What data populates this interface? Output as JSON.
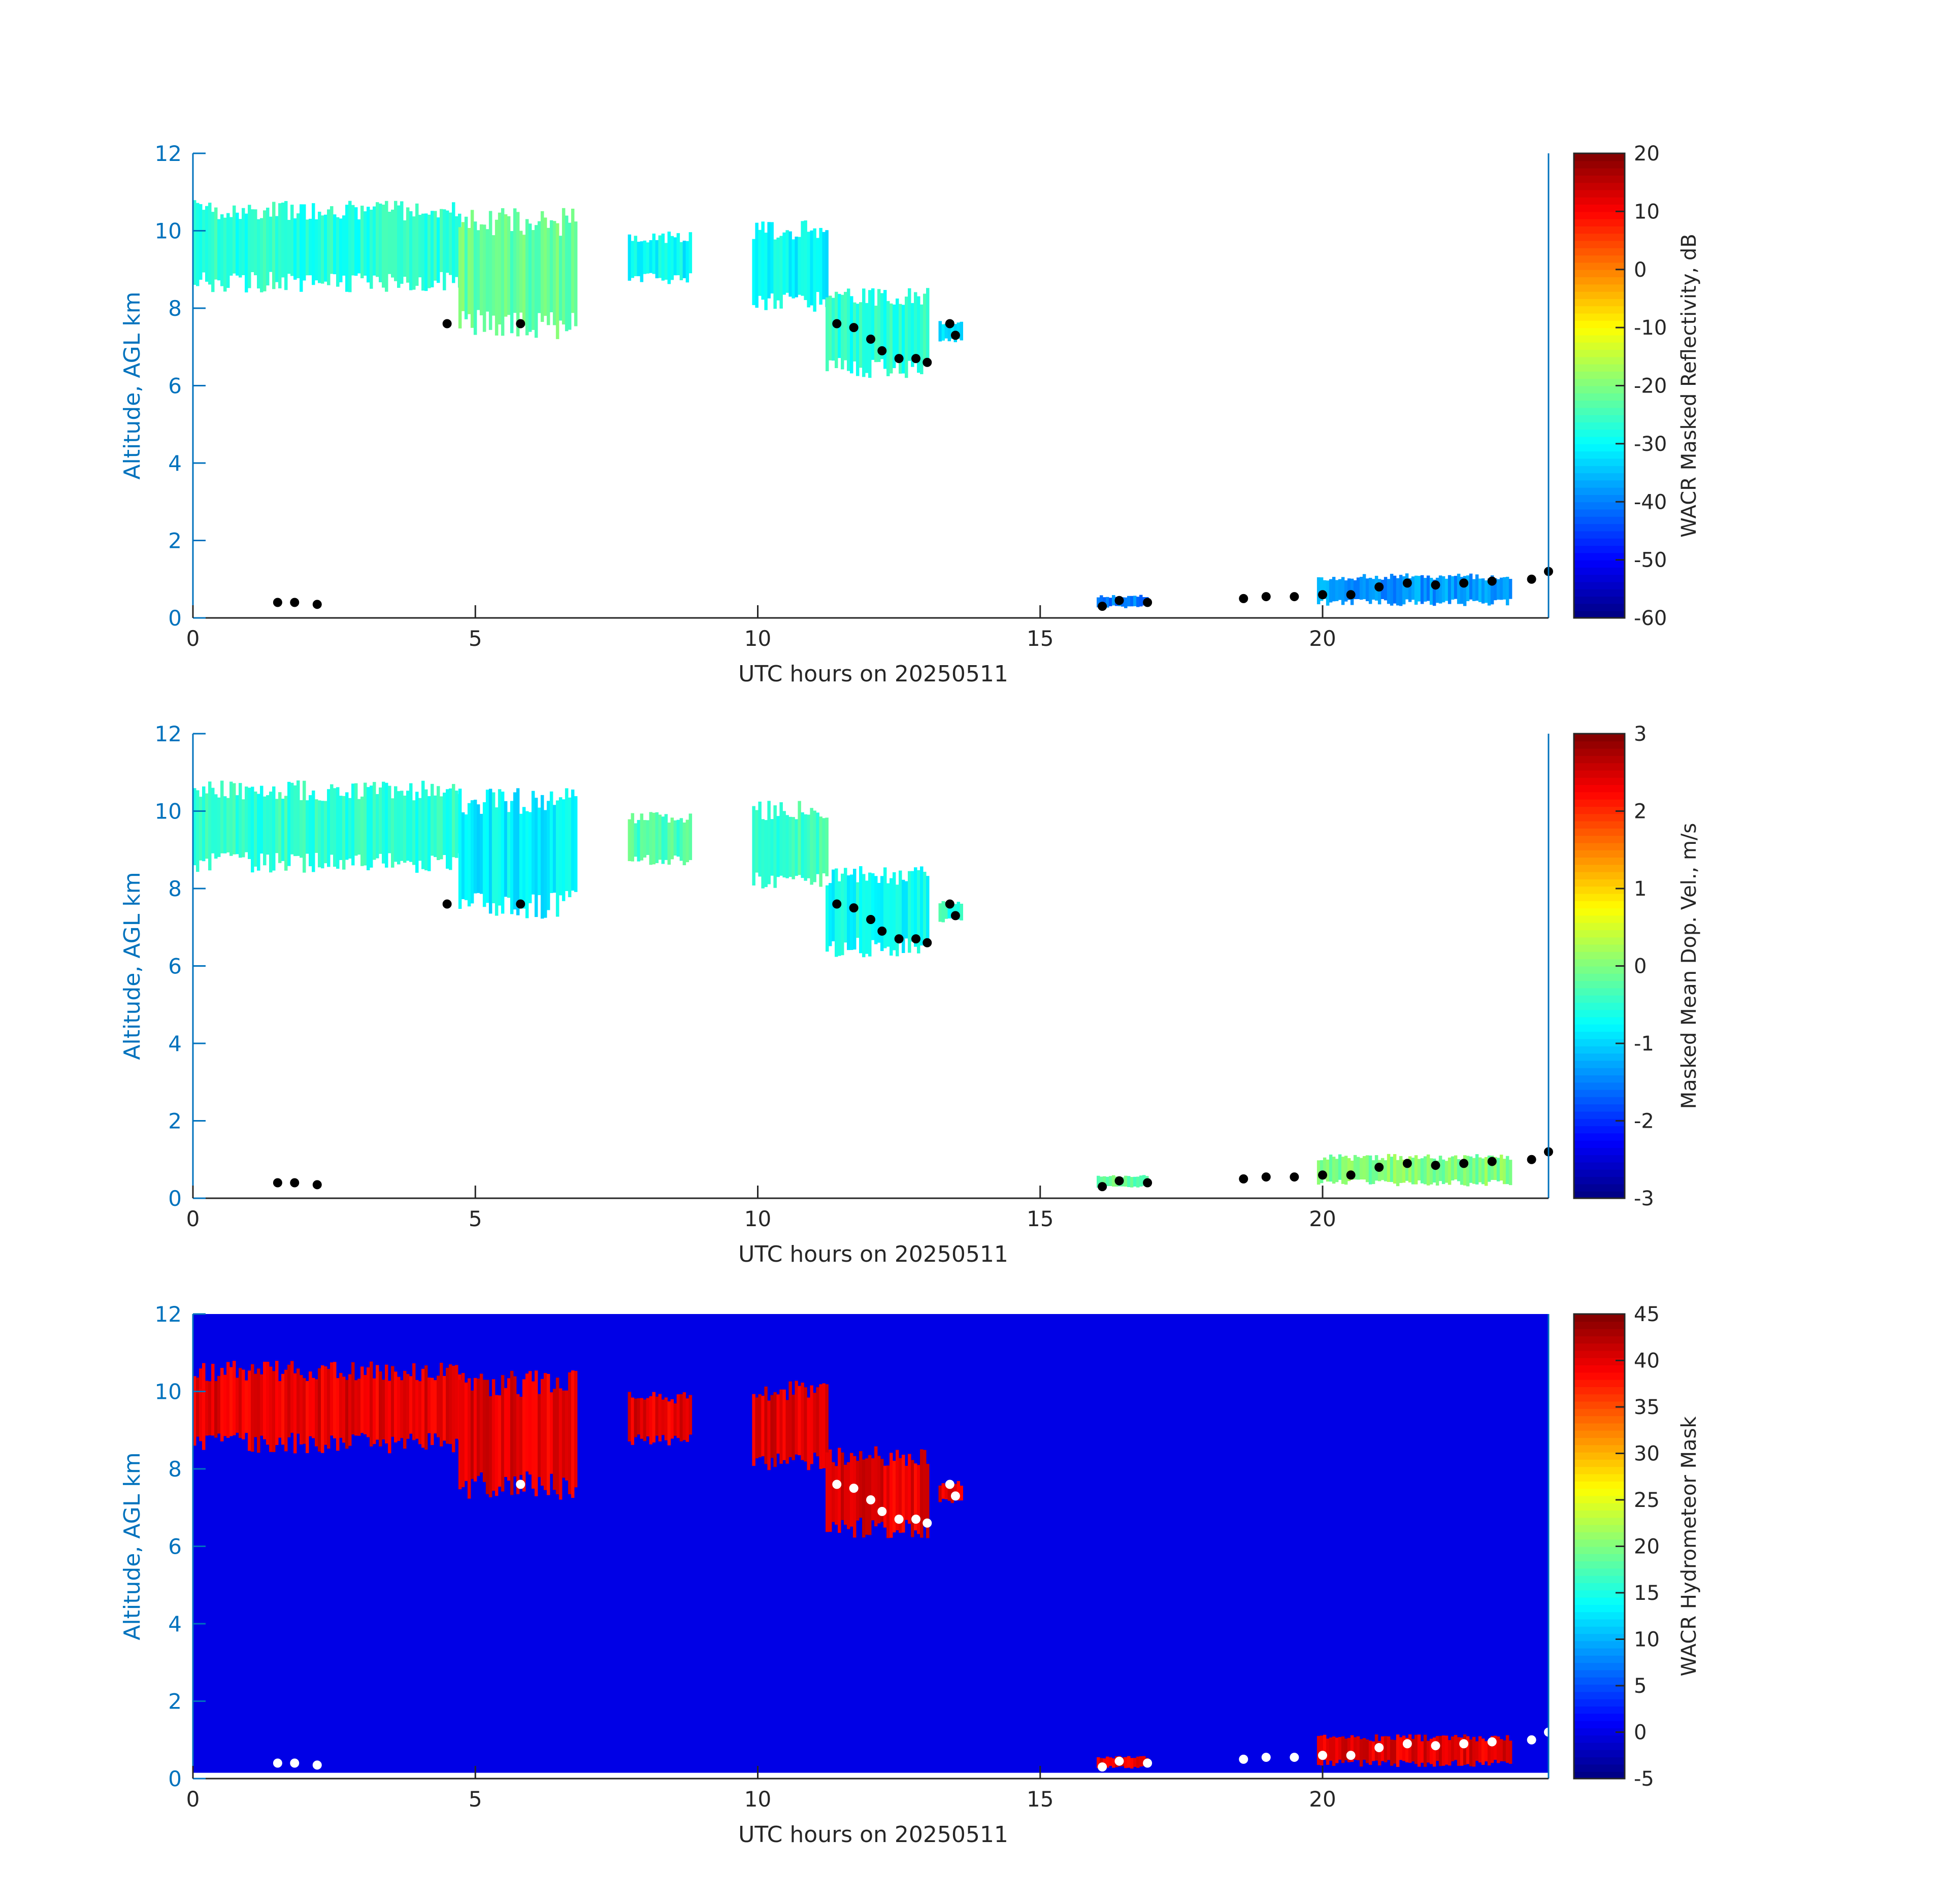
{
  "figure": {
    "axis_color": "#0072bd",
    "x_axis_color": "#262626",
    "background": "#ffffff"
  },
  "chart_data": [
    {
      "type": "heatmap",
      "title": "",
      "xlabel": "UTC hours on 20250511",
      "ylabel": "Altitude, AGL km",
      "xlim": [
        0,
        24
      ],
      "ylim": [
        0,
        12
      ],
      "xticks": [
        "0",
        "5",
        "10",
        "15",
        "20"
      ],
      "xtick_values": [
        0,
        5,
        10,
        15,
        20
      ],
      "yticks": [
        "0",
        "2",
        "4",
        "6",
        "8",
        "10",
        "12"
      ],
      "ytick_values": [
        0,
        2,
        4,
        6,
        8,
        10,
        12
      ],
      "colorbar": {
        "label": "WACR Masked Reflectivity, dB",
        "colormap": "jet",
        "range": [
          -60,
          20
        ],
        "ticks": [
          "-60",
          "-50",
          "-40",
          "-30",
          "-20",
          "-10",
          "0",
          "10",
          "20"
        ],
        "tick_values": [
          -60,
          -50,
          -40,
          -30,
          -20,
          -10,
          0,
          10,
          20
        ]
      },
      "cloud_regions": [
        {
          "x_start": 0.0,
          "x_end": 4.7,
          "y_bottom": 8.4,
          "y_top": 10.8,
          "value": -27
        },
        {
          "x_start": 4.7,
          "x_end": 6.8,
          "y_bottom": 7.2,
          "y_top": 10.6,
          "value": -22
        },
        {
          "x_start": 7.7,
          "x_end": 8.8,
          "y_bottom": 8.6,
          "y_top": 10.0,
          "value": -30
        },
        {
          "x_start": 9.9,
          "x_end": 11.2,
          "y_bottom": 7.9,
          "y_top": 10.3,
          "value": -30
        },
        {
          "x_start": 11.2,
          "x_end": 13.0,
          "y_bottom": 6.2,
          "y_top": 8.6,
          "value": -27
        },
        {
          "x_start": 13.2,
          "x_end": 13.6,
          "y_bottom": 7.1,
          "y_top": 7.7,
          "value": -32
        },
        {
          "x_start": 16.0,
          "x_end": 16.9,
          "y_bottom": 0.25,
          "y_top": 0.6,
          "value": -40
        },
        {
          "x_start": 19.9,
          "x_end": 23.3,
          "y_bottom": 0.3,
          "y_top": 1.15,
          "value": -38
        }
      ],
      "cloud_base_points": [
        {
          "x": 4.5,
          "y": 7.6
        },
        {
          "x": 5.8,
          "y": 7.6
        },
        {
          "x": 11.4,
          "y": 7.6
        },
        {
          "x": 11.7,
          "y": 7.5
        },
        {
          "x": 12.0,
          "y": 7.2
        },
        {
          "x": 12.2,
          "y": 6.9
        },
        {
          "x": 12.5,
          "y": 6.7
        },
        {
          "x": 12.8,
          "y": 6.7
        },
        {
          "x": 13.0,
          "y": 6.6
        },
        {
          "x": 13.4,
          "y": 7.6
        },
        {
          "x": 13.5,
          "y": 7.3
        },
        {
          "x": 1.5,
          "y": 0.4
        },
        {
          "x": 1.8,
          "y": 0.4
        },
        {
          "x": 2.2,
          "y": 0.35
        },
        {
          "x": 16.1,
          "y": 0.3
        },
        {
          "x": 16.4,
          "y": 0.45
        },
        {
          "x": 16.9,
          "y": 0.4
        },
        {
          "x": 18.6,
          "y": 0.5
        },
        {
          "x": 19.0,
          "y": 0.55
        },
        {
          "x": 19.5,
          "y": 0.55
        },
        {
          "x": 20.0,
          "y": 0.6
        },
        {
          "x": 20.5,
          "y": 0.6
        },
        {
          "x": 21.0,
          "y": 0.8
        },
        {
          "x": 21.5,
          "y": 0.9
        },
        {
          "x": 22.0,
          "y": 0.85
        },
        {
          "x": 22.5,
          "y": 0.9
        },
        {
          "x": 23.0,
          "y": 0.95
        },
        {
          "x": 23.7,
          "y": 1.0
        },
        {
          "x": 24.0,
          "y": 1.2
        }
      ]
    },
    {
      "type": "heatmap",
      "title": "",
      "xlabel": "UTC hours on 20250511",
      "ylabel": "Altitude, AGL km",
      "xlim": [
        0,
        24
      ],
      "ylim": [
        0,
        12
      ],
      "xticks": [
        "0",
        "5",
        "10",
        "15",
        "20"
      ],
      "xtick_values": [
        0,
        5,
        10,
        15,
        20
      ],
      "yticks": [
        "0",
        "2",
        "4",
        "6",
        "8",
        "10",
        "12"
      ],
      "ytick_values": [
        0,
        2,
        4,
        6,
        8,
        10,
        12
      ],
      "colorbar": {
        "label": "Masked Mean Dop. Vel., m/s",
        "colormap": "jet",
        "range": [
          -3,
          3
        ],
        "ticks": [
          "-3",
          "-2",
          "-1",
          "0",
          "1",
          "2",
          "3"
        ],
        "tick_values": [
          -3,
          -2,
          -1,
          0,
          1,
          2,
          3
        ]
      },
      "cloud_regions": [
        {
          "x_start": 0.0,
          "x_end": 4.7,
          "y_bottom": 8.4,
          "y_top": 10.8,
          "value": -0.5
        },
        {
          "x_start": 4.7,
          "x_end": 6.8,
          "y_bottom": 7.2,
          "y_top": 10.6,
          "value": -0.8
        },
        {
          "x_start": 7.7,
          "x_end": 8.8,
          "y_bottom": 8.6,
          "y_top": 10.0,
          "value": -0.3
        },
        {
          "x_start": 9.9,
          "x_end": 11.2,
          "y_bottom": 7.9,
          "y_top": 10.3,
          "value": -0.4
        },
        {
          "x_start": 11.2,
          "x_end": 13.0,
          "y_bottom": 6.2,
          "y_top": 8.6,
          "value": -0.7
        },
        {
          "x_start": 13.2,
          "x_end": 13.6,
          "y_bottom": 7.1,
          "y_top": 7.7,
          "value": -0.5
        },
        {
          "x_start": 16.0,
          "x_end": 16.9,
          "y_bottom": 0.25,
          "y_top": 0.6,
          "value": -0.2
        },
        {
          "x_start": 19.9,
          "x_end": 23.3,
          "y_bottom": 0.3,
          "y_top": 1.15,
          "value": 0.0
        }
      ],
      "cloud_base_points": [
        {
          "x": 4.5,
          "y": 7.6
        },
        {
          "x": 5.8,
          "y": 7.6
        },
        {
          "x": 11.4,
          "y": 7.6
        },
        {
          "x": 11.7,
          "y": 7.5
        },
        {
          "x": 12.0,
          "y": 7.2
        },
        {
          "x": 12.2,
          "y": 6.9
        },
        {
          "x": 12.5,
          "y": 6.7
        },
        {
          "x": 12.8,
          "y": 6.7
        },
        {
          "x": 13.0,
          "y": 6.6
        },
        {
          "x": 13.4,
          "y": 7.6
        },
        {
          "x": 13.5,
          "y": 7.3
        },
        {
          "x": 1.5,
          "y": 0.4
        },
        {
          "x": 1.8,
          "y": 0.4
        },
        {
          "x": 2.2,
          "y": 0.35
        },
        {
          "x": 16.1,
          "y": 0.3
        },
        {
          "x": 16.4,
          "y": 0.45
        },
        {
          "x": 16.9,
          "y": 0.4
        },
        {
          "x": 18.6,
          "y": 0.5
        },
        {
          "x": 19.0,
          "y": 0.55
        },
        {
          "x": 19.5,
          "y": 0.55
        },
        {
          "x": 20.0,
          "y": 0.6
        },
        {
          "x": 20.5,
          "y": 0.6
        },
        {
          "x": 21.0,
          "y": 0.8
        },
        {
          "x": 21.5,
          "y": 0.9
        },
        {
          "x": 22.0,
          "y": 0.85
        },
        {
          "x": 22.5,
          "y": 0.9
        },
        {
          "x": 23.0,
          "y": 0.95
        },
        {
          "x": 23.7,
          "y": 1.0
        },
        {
          "x": 24.0,
          "y": 1.2
        }
      ]
    },
    {
      "type": "heatmap",
      "title": "",
      "xlabel": "UTC hours on 20250511",
      "ylabel": "Altitude, AGL km",
      "xlim": [
        0,
        24
      ],
      "ylim": [
        0,
        12
      ],
      "xticks": [
        "0",
        "5",
        "10",
        "15",
        "20"
      ],
      "xtick_values": [
        0,
        5,
        10,
        15,
        20
      ],
      "yticks": [
        "0",
        "2",
        "4",
        "6",
        "8",
        "10",
        "12"
      ],
      "ytick_values": [
        0,
        2,
        4,
        6,
        8,
        10,
        12
      ],
      "colorbar": {
        "label": "WACR Hydrometeor Mask",
        "colormap": "jet",
        "range": [
          -5,
          45
        ],
        "ticks": [
          "-5",
          "0",
          "5",
          "10",
          "15",
          "20",
          "25",
          "30",
          "35",
          "40",
          "45"
        ],
        "tick_values": [
          -5,
          0,
          5,
          10,
          15,
          20,
          25,
          30,
          35,
          40,
          45
        ]
      },
      "background_value": 0,
      "background_y_from": 0.15,
      "cloud_regions": [
        {
          "x_start": 0.0,
          "x_end": 4.7,
          "y_bottom": 8.4,
          "y_top": 10.8,
          "value": 40
        },
        {
          "x_start": 4.7,
          "x_end": 6.8,
          "y_bottom": 7.2,
          "y_top": 10.6,
          "value": 40
        },
        {
          "x_start": 7.7,
          "x_end": 8.8,
          "y_bottom": 8.6,
          "y_top": 10.0,
          "value": 40
        },
        {
          "x_start": 9.9,
          "x_end": 11.2,
          "y_bottom": 7.9,
          "y_top": 10.3,
          "value": 40
        },
        {
          "x_start": 11.2,
          "x_end": 13.0,
          "y_bottom": 6.2,
          "y_top": 8.6,
          "value": 40
        },
        {
          "x_start": 13.2,
          "x_end": 13.6,
          "y_bottom": 7.1,
          "y_top": 7.7,
          "value": 40
        },
        {
          "x_start": 16.0,
          "x_end": 16.9,
          "y_bottom": 0.25,
          "y_top": 0.6,
          "value": 40
        },
        {
          "x_start": 19.9,
          "x_end": 23.3,
          "y_bottom": 0.3,
          "y_top": 1.15,
          "value": 40
        }
      ],
      "cloud_base_points": [
        {
          "x": 5.8,
          "y": 7.6
        },
        {
          "x": 11.4,
          "y": 7.6
        },
        {
          "x": 11.7,
          "y": 7.5
        },
        {
          "x": 12.0,
          "y": 7.2
        },
        {
          "x": 12.2,
          "y": 6.9
        },
        {
          "x": 12.5,
          "y": 6.7
        },
        {
          "x": 12.8,
          "y": 6.7
        },
        {
          "x": 13.0,
          "y": 6.6
        },
        {
          "x": 13.4,
          "y": 7.6
        },
        {
          "x": 13.5,
          "y": 7.3
        },
        {
          "x": 1.5,
          "y": 0.4
        },
        {
          "x": 1.8,
          "y": 0.4
        },
        {
          "x": 2.2,
          "y": 0.35
        },
        {
          "x": 16.1,
          "y": 0.3
        },
        {
          "x": 16.4,
          "y": 0.45
        },
        {
          "x": 16.9,
          "y": 0.4
        },
        {
          "x": 18.6,
          "y": 0.5
        },
        {
          "x": 19.0,
          "y": 0.55
        },
        {
          "x": 19.5,
          "y": 0.55
        },
        {
          "x": 20.0,
          "y": 0.6
        },
        {
          "x": 20.5,
          "y": 0.6
        },
        {
          "x": 21.0,
          "y": 0.8
        },
        {
          "x": 21.5,
          "y": 0.9
        },
        {
          "x": 22.0,
          "y": 0.85
        },
        {
          "x": 22.5,
          "y": 0.9
        },
        {
          "x": 23.0,
          "y": 0.95
        },
        {
          "x": 23.7,
          "y": 1.0
        },
        {
          "x": 24.0,
          "y": 1.2
        }
      ]
    }
  ]
}
